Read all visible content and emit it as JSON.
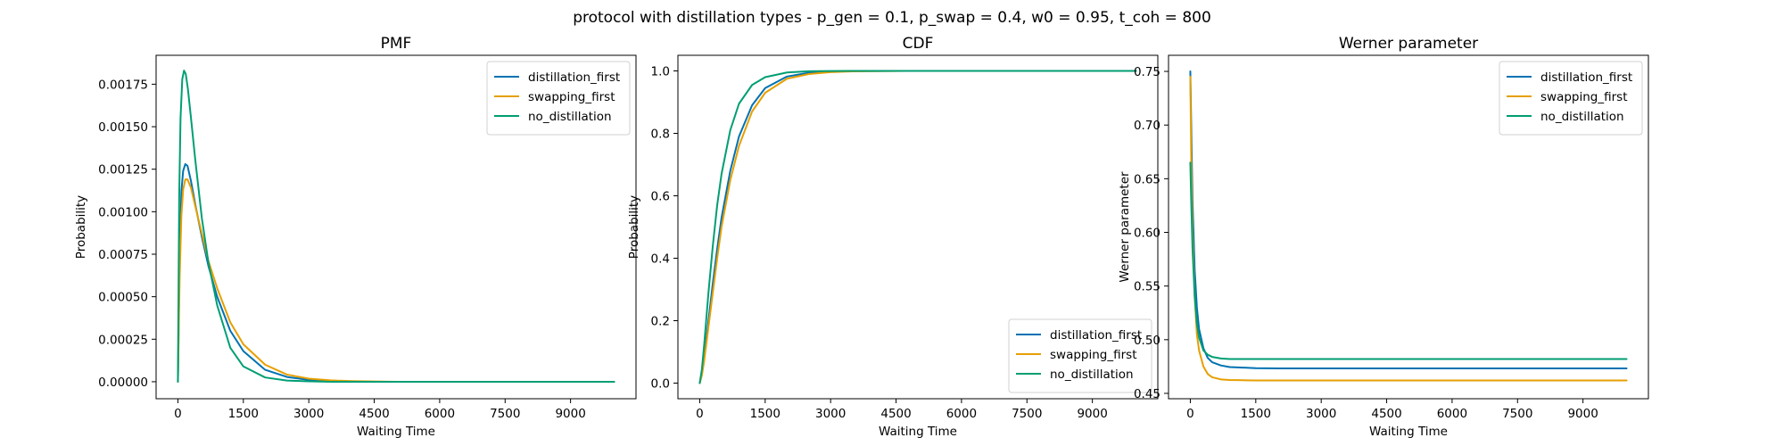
{
  "figure": {
    "suptitle": "protocol with distillation types - p_gen = 0.1, p_swap = 0.4, w0 = 0.95, t_coh = 800"
  },
  "colors": {
    "distillation_first": "#0072B2",
    "swapping_first": "#E69F00",
    "no_distillation": "#009E73"
  },
  "chart_data": [
    {
      "type": "line",
      "title": "PMF",
      "xlabel": "Waiting Time",
      "ylabel": "Probability",
      "xlim": [
        -500,
        10500
      ],
      "ylim": [
        -0.0001,
        0.00192
      ],
      "xticks": [
        0,
        1500,
        3000,
        4500,
        6000,
        7500,
        9000
      ],
      "xtick_labels": [
        "0",
        "1500",
        "3000",
        "4500",
        "6000",
        "7500",
        "9000"
      ],
      "yticks": [
        0,
        0.00025,
        0.0005,
        0.00075,
        0.001,
        0.00125,
        0.0015,
        0.00175
      ],
      "ytick_labels": [
        "0.00000",
        "0.00025",
        "0.00050",
        "0.00075",
        "0.00100",
        "0.00125",
        "0.00150",
        "0.00175"
      ],
      "legend_position": "top-right",
      "series": [
        {
          "name": "distillation_first",
          "x": [
            0,
            40,
            80,
            120,
            170,
            220,
            300,
            400,
            550,
            700,
            900,
            1200,
            1500,
            2000,
            2500,
            3000,
            3500,
            4000,
            4500,
            5000,
            6000,
            7000,
            8000,
            9000,
            10000
          ],
          "y": [
            0,
            0.00075,
            0.00112,
            0.00124,
            0.00128,
            0.00127,
            0.00118,
            0.00104,
            0.00085,
            0.00068,
            0.0005,
            0.0003,
            0.00018,
            7e-05,
            2.8e-05,
            1.1e-05,
            4e-06,
            1.6e-06,
            0,
            0,
            0,
            0,
            0,
            0,
            0
          ]
        },
        {
          "name": "swapping_first",
          "x": [
            0,
            40,
            80,
            120,
            170,
            220,
            300,
            400,
            550,
            700,
            900,
            1200,
            1500,
            2000,
            2500,
            3000,
            3500,
            4000,
            4500,
            5000,
            6000,
            7000,
            8000,
            9000,
            10000
          ],
          "y": [
            0,
            0.00062,
            0.00098,
            0.00113,
            0.00119,
            0.00119,
            0.00114,
            0.00103,
            0.00087,
            0.00071,
            0.00055,
            0.00035,
            0.00022,
            0.0001,
            4.2e-05,
            1.8e-05,
            8e-06,
            3.5e-06,
            1.5e-06,
            0,
            0,
            0,
            0,
            0,
            0
          ]
        },
        {
          "name": "no_distillation",
          "x": [
            0,
            30,
            60,
            100,
            140,
            180,
            230,
            300,
            400,
            550,
            700,
            900,
            1200,
            1500,
            2000,
            2500,
            3000,
            3500,
            4000,
            5000,
            6000,
            7000,
            8000,
            9000,
            10000
          ],
          "y": [
            0,
            0.0011,
            0.00155,
            0.00178,
            0.00183,
            0.00181,
            0.00172,
            0.00155,
            0.0013,
            0.00096,
            0.0007,
            0.00045,
            0.0002,
            9e-05,
            2.5e-05,
            7e-06,
            2e-06,
            0,
            0,
            0,
            0,
            0,
            0,
            0,
            0
          ]
        }
      ]
    },
    {
      "type": "line",
      "title": "CDF",
      "xlabel": "Waiting Time",
      "ylabel": "Probability",
      "xlim": [
        -500,
        10500
      ],
      "ylim": [
        -0.05,
        1.05
      ],
      "xticks": [
        0,
        1500,
        3000,
        4500,
        6000,
        7500,
        9000
      ],
      "xtick_labels": [
        "0",
        "1500",
        "3000",
        "4500",
        "6000",
        "7500",
        "9000"
      ],
      "yticks": [
        0,
        0.2,
        0.4,
        0.6,
        0.8,
        1.0
      ],
      "ytick_labels": [
        "0.0",
        "0.2",
        "0.4",
        "0.6",
        "0.8",
        "1.0"
      ],
      "legend_position": "bottom-right",
      "series": [
        {
          "name": "distillation_first",
          "x": [
            0,
            50,
            100,
            200,
            300,
            400,
            500,
            700,
            900,
            1200,
            1500,
            2000,
            2500,
            3000,
            3500,
            4000,
            4500,
            5000,
            6000,
            7000,
            8000,
            9000,
            10000
          ],
          "y": [
            0,
            0.03,
            0.08,
            0.2,
            0.32,
            0.43,
            0.53,
            0.68,
            0.79,
            0.89,
            0.945,
            0.982,
            0.994,
            0.998,
            0.9993,
            0.9997,
            1,
            1,
            1,
            1,
            1,
            1,
            1
          ]
        },
        {
          "name": "swapping_first",
          "x": [
            0,
            50,
            100,
            200,
            300,
            400,
            500,
            700,
            900,
            1200,
            1500,
            2000,
            2500,
            3000,
            3500,
            4000,
            4500,
            5000,
            6000,
            7000,
            8000,
            9000,
            10000
          ],
          "y": [
            0,
            0.025,
            0.07,
            0.18,
            0.29,
            0.4,
            0.5,
            0.65,
            0.76,
            0.87,
            0.93,
            0.975,
            0.99,
            0.996,
            0.9985,
            0.9994,
            0.9998,
            1,
            1,
            1,
            1,
            1,
            1
          ]
        },
        {
          "name": "no_distillation",
          "x": [
            0,
            50,
            100,
            200,
            300,
            400,
            500,
            700,
            900,
            1200,
            1500,
            2000,
            2500,
            3000,
            3500,
            4000,
            5000,
            6000,
            7000,
            8000,
            9000,
            10000
          ],
          "y": [
            0,
            0.045,
            0.12,
            0.29,
            0.44,
            0.57,
            0.67,
            0.81,
            0.895,
            0.955,
            0.98,
            0.995,
            0.999,
            0.9997,
            1,
            1,
            1,
            1,
            1,
            1,
            1,
            1
          ]
        }
      ]
    },
    {
      "type": "line",
      "title": "Werner parameter",
      "xlabel": "Waiting Time",
      "ylabel": "Werner parameter",
      "xlim": [
        -500,
        10500
      ],
      "ylim": [
        0.445,
        0.765
      ],
      "xticks": [
        0,
        1500,
        3000,
        4500,
        6000,
        7500,
        9000
      ],
      "xtick_labels": [
        "0",
        "1500",
        "3000",
        "4500",
        "6000",
        "7500",
        "9000"
      ],
      "yticks": [
        0.45,
        0.5,
        0.55,
        0.6,
        0.65,
        0.7,
        0.75
      ],
      "ytick_labels": [
        "0.45",
        "0.50",
        "0.55",
        "0.60",
        "0.65",
        "0.70",
        "0.75"
      ],
      "legend_position": "top-right",
      "series": [
        {
          "name": "distillation_first",
          "x": [
            0,
            20,
            50,
            100,
            150,
            200,
            300,
            400,
            500,
            700,
            900,
            1200,
            1500,
            2000,
            3000,
            5000,
            7500,
            10000
          ],
          "y": [
            0.75,
            0.7,
            0.63,
            0.565,
            0.53,
            0.51,
            0.492,
            0.483,
            0.479,
            0.476,
            0.4745,
            0.474,
            0.4735,
            0.4733,
            0.4733,
            0.4733,
            0.4733,
            0.4733
          ]
        },
        {
          "name": "swapping_first",
          "x": [
            0,
            20,
            50,
            100,
            150,
            200,
            300,
            400,
            500,
            700,
            900,
            1200,
            1500,
            2000,
            3000,
            5000,
            7500,
            10000
          ],
          "y": [
            0.745,
            0.67,
            0.6,
            0.54,
            0.505,
            0.49,
            0.475,
            0.468,
            0.465,
            0.463,
            0.4625,
            0.4622,
            0.462,
            0.462,
            0.462,
            0.462,
            0.462,
            0.462
          ]
        },
        {
          "name": "no_distillation",
          "x": [
            0,
            20,
            50,
            100,
            150,
            200,
            300,
            400,
            500,
            700,
            900,
            1200,
            1500,
            2000,
            3000,
            5000,
            7500,
            10000
          ],
          "y": [
            0.665,
            0.63,
            0.585,
            0.54,
            0.515,
            0.502,
            0.49,
            0.486,
            0.484,
            0.4825,
            0.482,
            0.482,
            0.482,
            0.482,
            0.482,
            0.482,
            0.482,
            0.482
          ]
        }
      ]
    }
  ]
}
